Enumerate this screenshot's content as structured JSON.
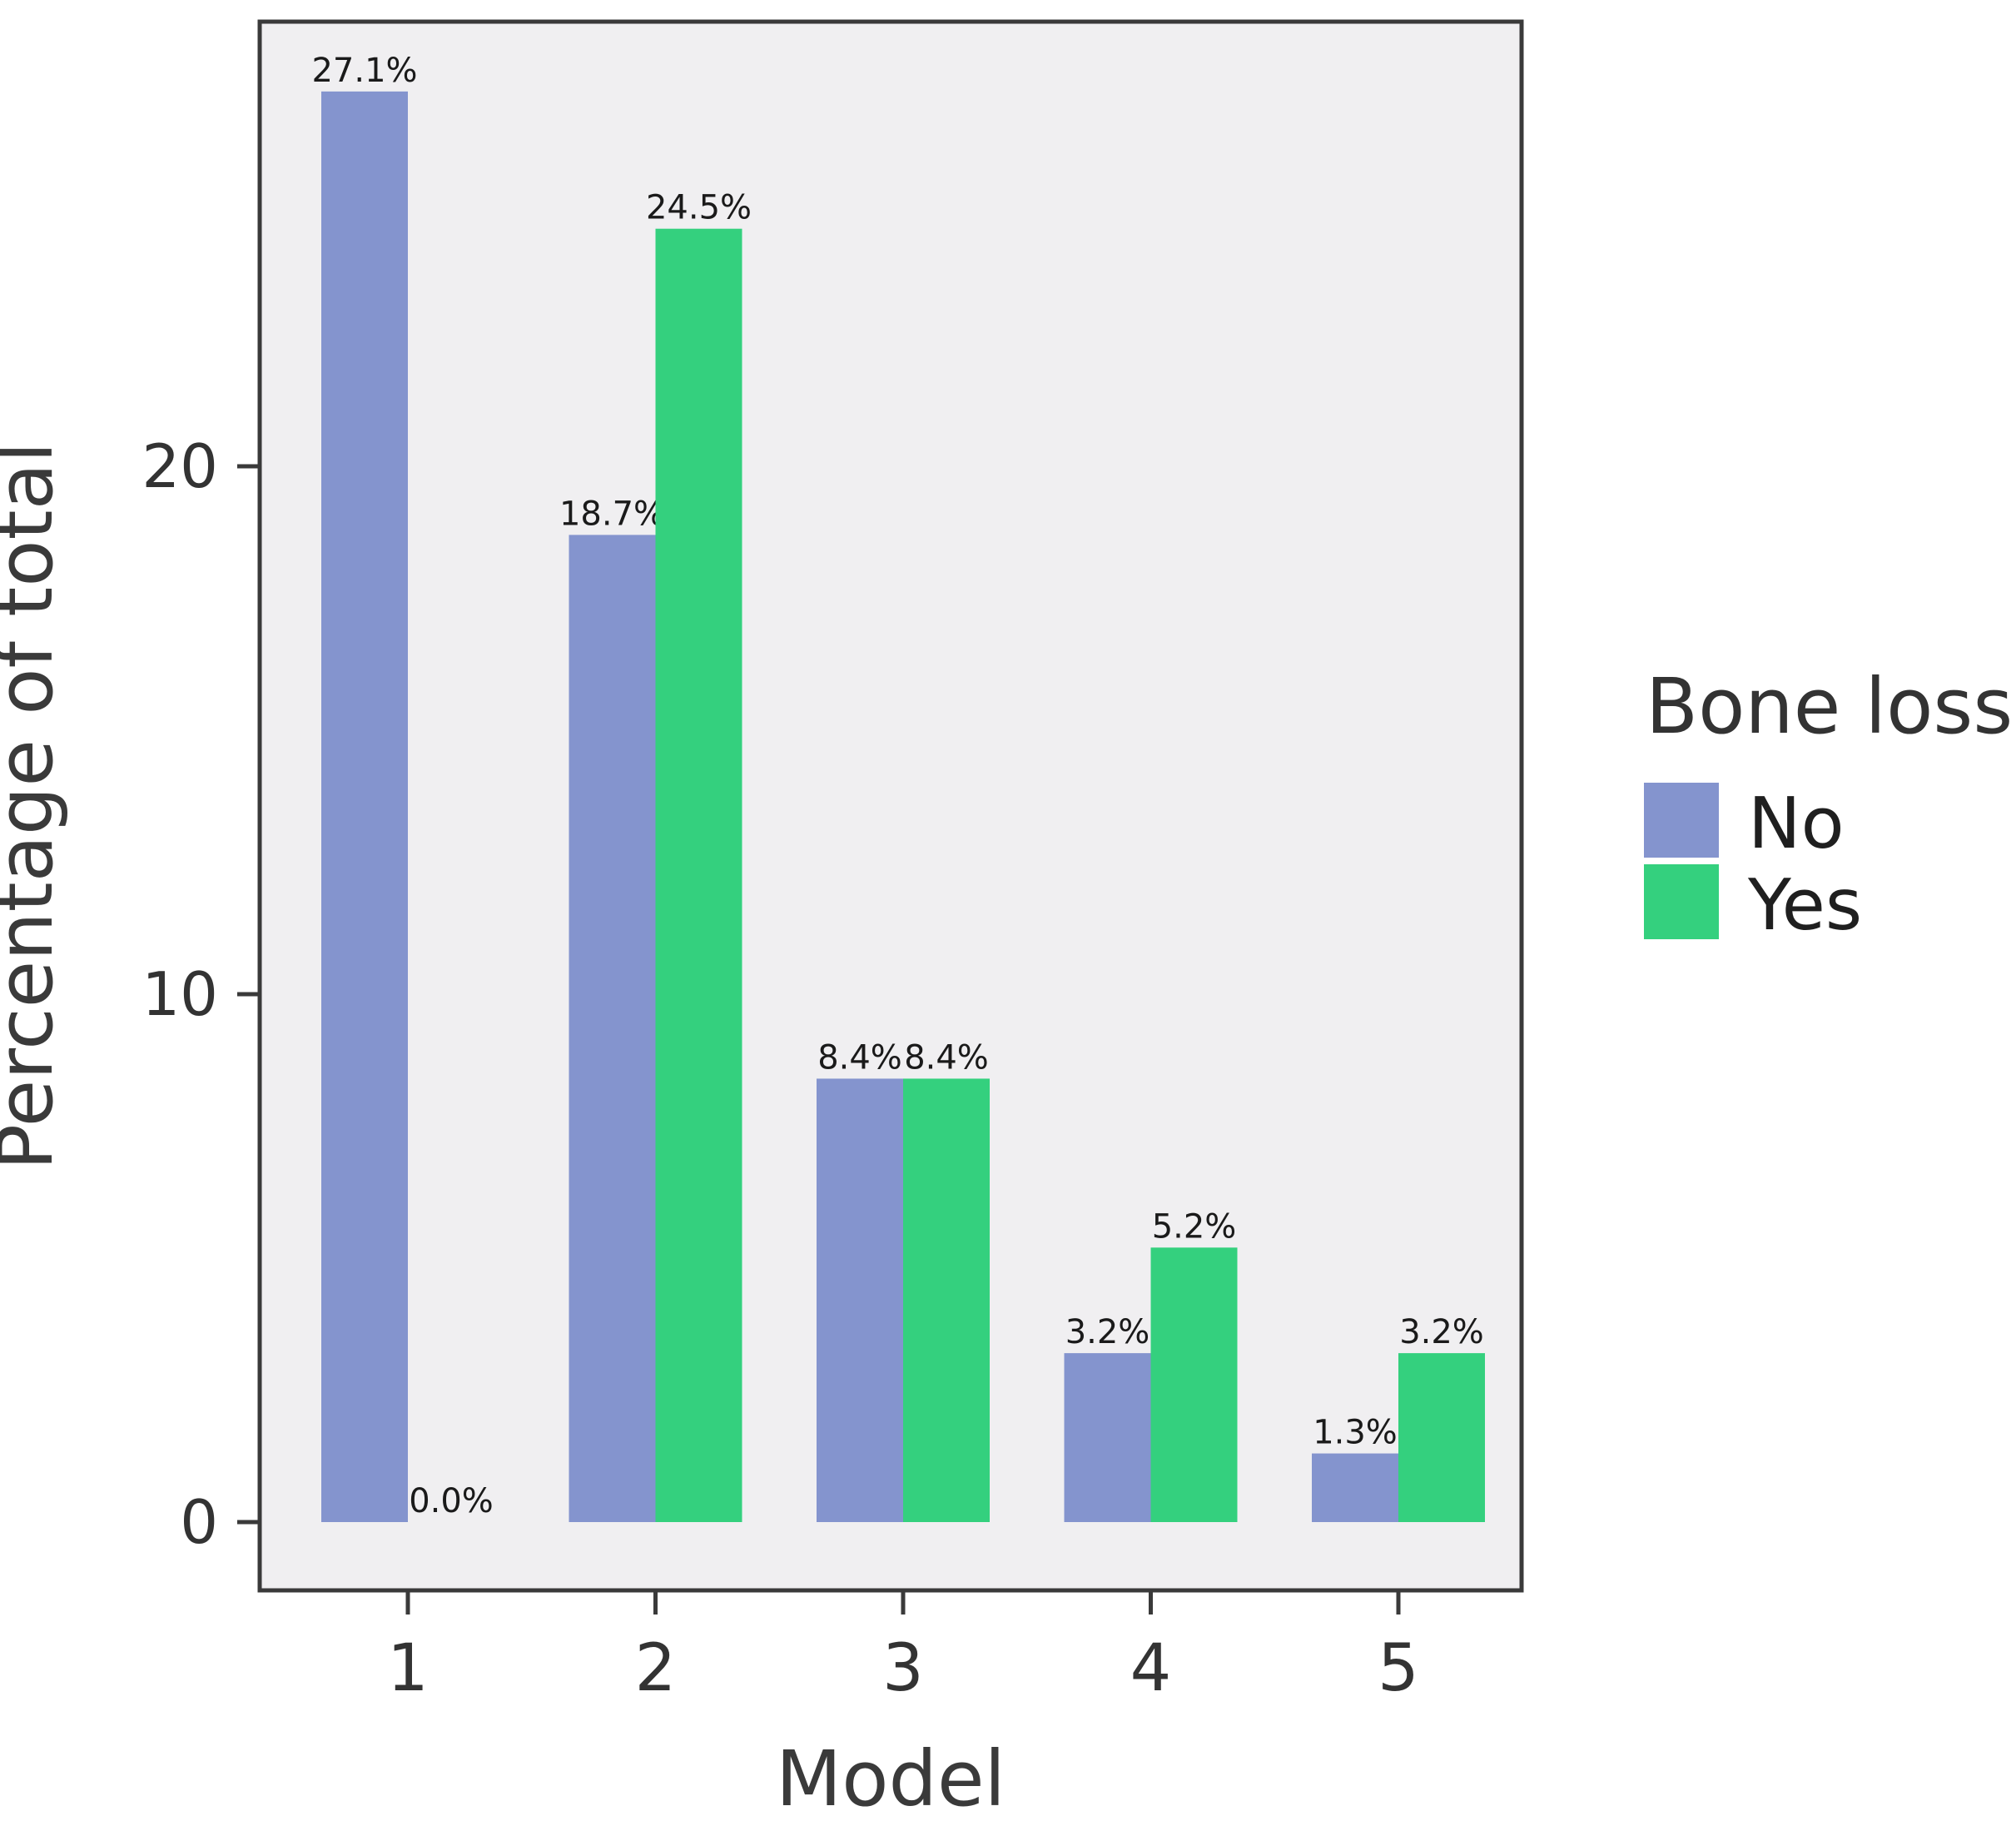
{
  "figure": {
    "background": "#ffffff",
    "panel_background": "#f0eff1",
    "border_color": "#3a3a3a",
    "tick_color": "#3a3a3a",
    "text_color": "#333333",
    "bar_label_color": "#1a1a1a"
  },
  "chart_data": {
    "type": "bar",
    "title": "",
    "xlabel": "Model",
    "ylabel": "Percentage of total",
    "categories": [
      "1",
      "2",
      "3",
      "4",
      "5"
    ],
    "series": [
      {
        "name": "No",
        "color": "#8494ce",
        "values": [
          27.1,
          18.7,
          8.4,
          3.2,
          1.3
        ]
      },
      {
        "name": "Yes",
        "color": "#34d07e",
        "values": [
          0.0,
          24.5,
          8.4,
          5.2,
          3.2
        ]
      }
    ],
    "value_labels": [
      [
        "27.1%",
        "18.7%",
        "8.4%",
        "3.2%",
        "1.3%"
      ],
      [
        "0.0%",
        "24.5%",
        "8.4%",
        "5.2%",
        "3.2%"
      ]
    ],
    "y_ticks": [
      "0",
      "10",
      "20"
    ],
    "y_tick_values": [
      0,
      10,
      20
    ],
    "ylim": [
      -1.3,
      28.4
    ],
    "grid": false,
    "legend": {
      "title": "Bone loss",
      "position": "right",
      "entries": [
        "No",
        "Yes"
      ]
    }
  }
}
